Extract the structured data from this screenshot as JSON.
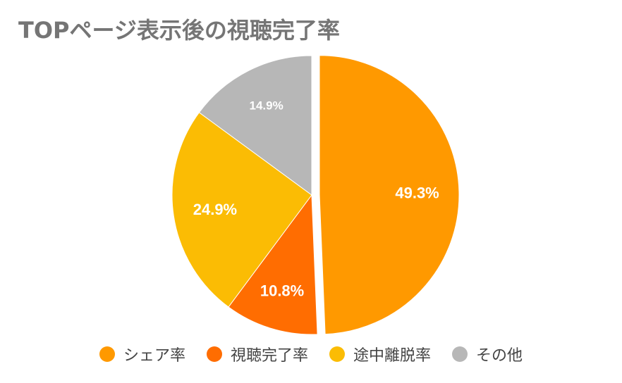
{
  "chart_data": {
    "type": "pie",
    "title": "TOPページ表示後の視聴完了率",
    "legend_position": "bottom",
    "start_angle_deg": 0,
    "direction": "clockwise",
    "exploded_slice": "シェア率",
    "slices": [
      {
        "name": "シェア率",
        "value": 49.3,
        "label": "49.3%",
        "color": "#ff9900"
      },
      {
        "name": "視聴完了率",
        "value": 10.8,
        "label": "10.8%",
        "color": "#ff6d01"
      },
      {
        "name": "途中離脱率",
        "value": 24.9,
        "label": "24.9%",
        "color": "#fbbc04"
      },
      {
        "name": "その他",
        "value": 14.9,
        "label": "14.9%",
        "color": "#b7b7b7"
      }
    ]
  }
}
